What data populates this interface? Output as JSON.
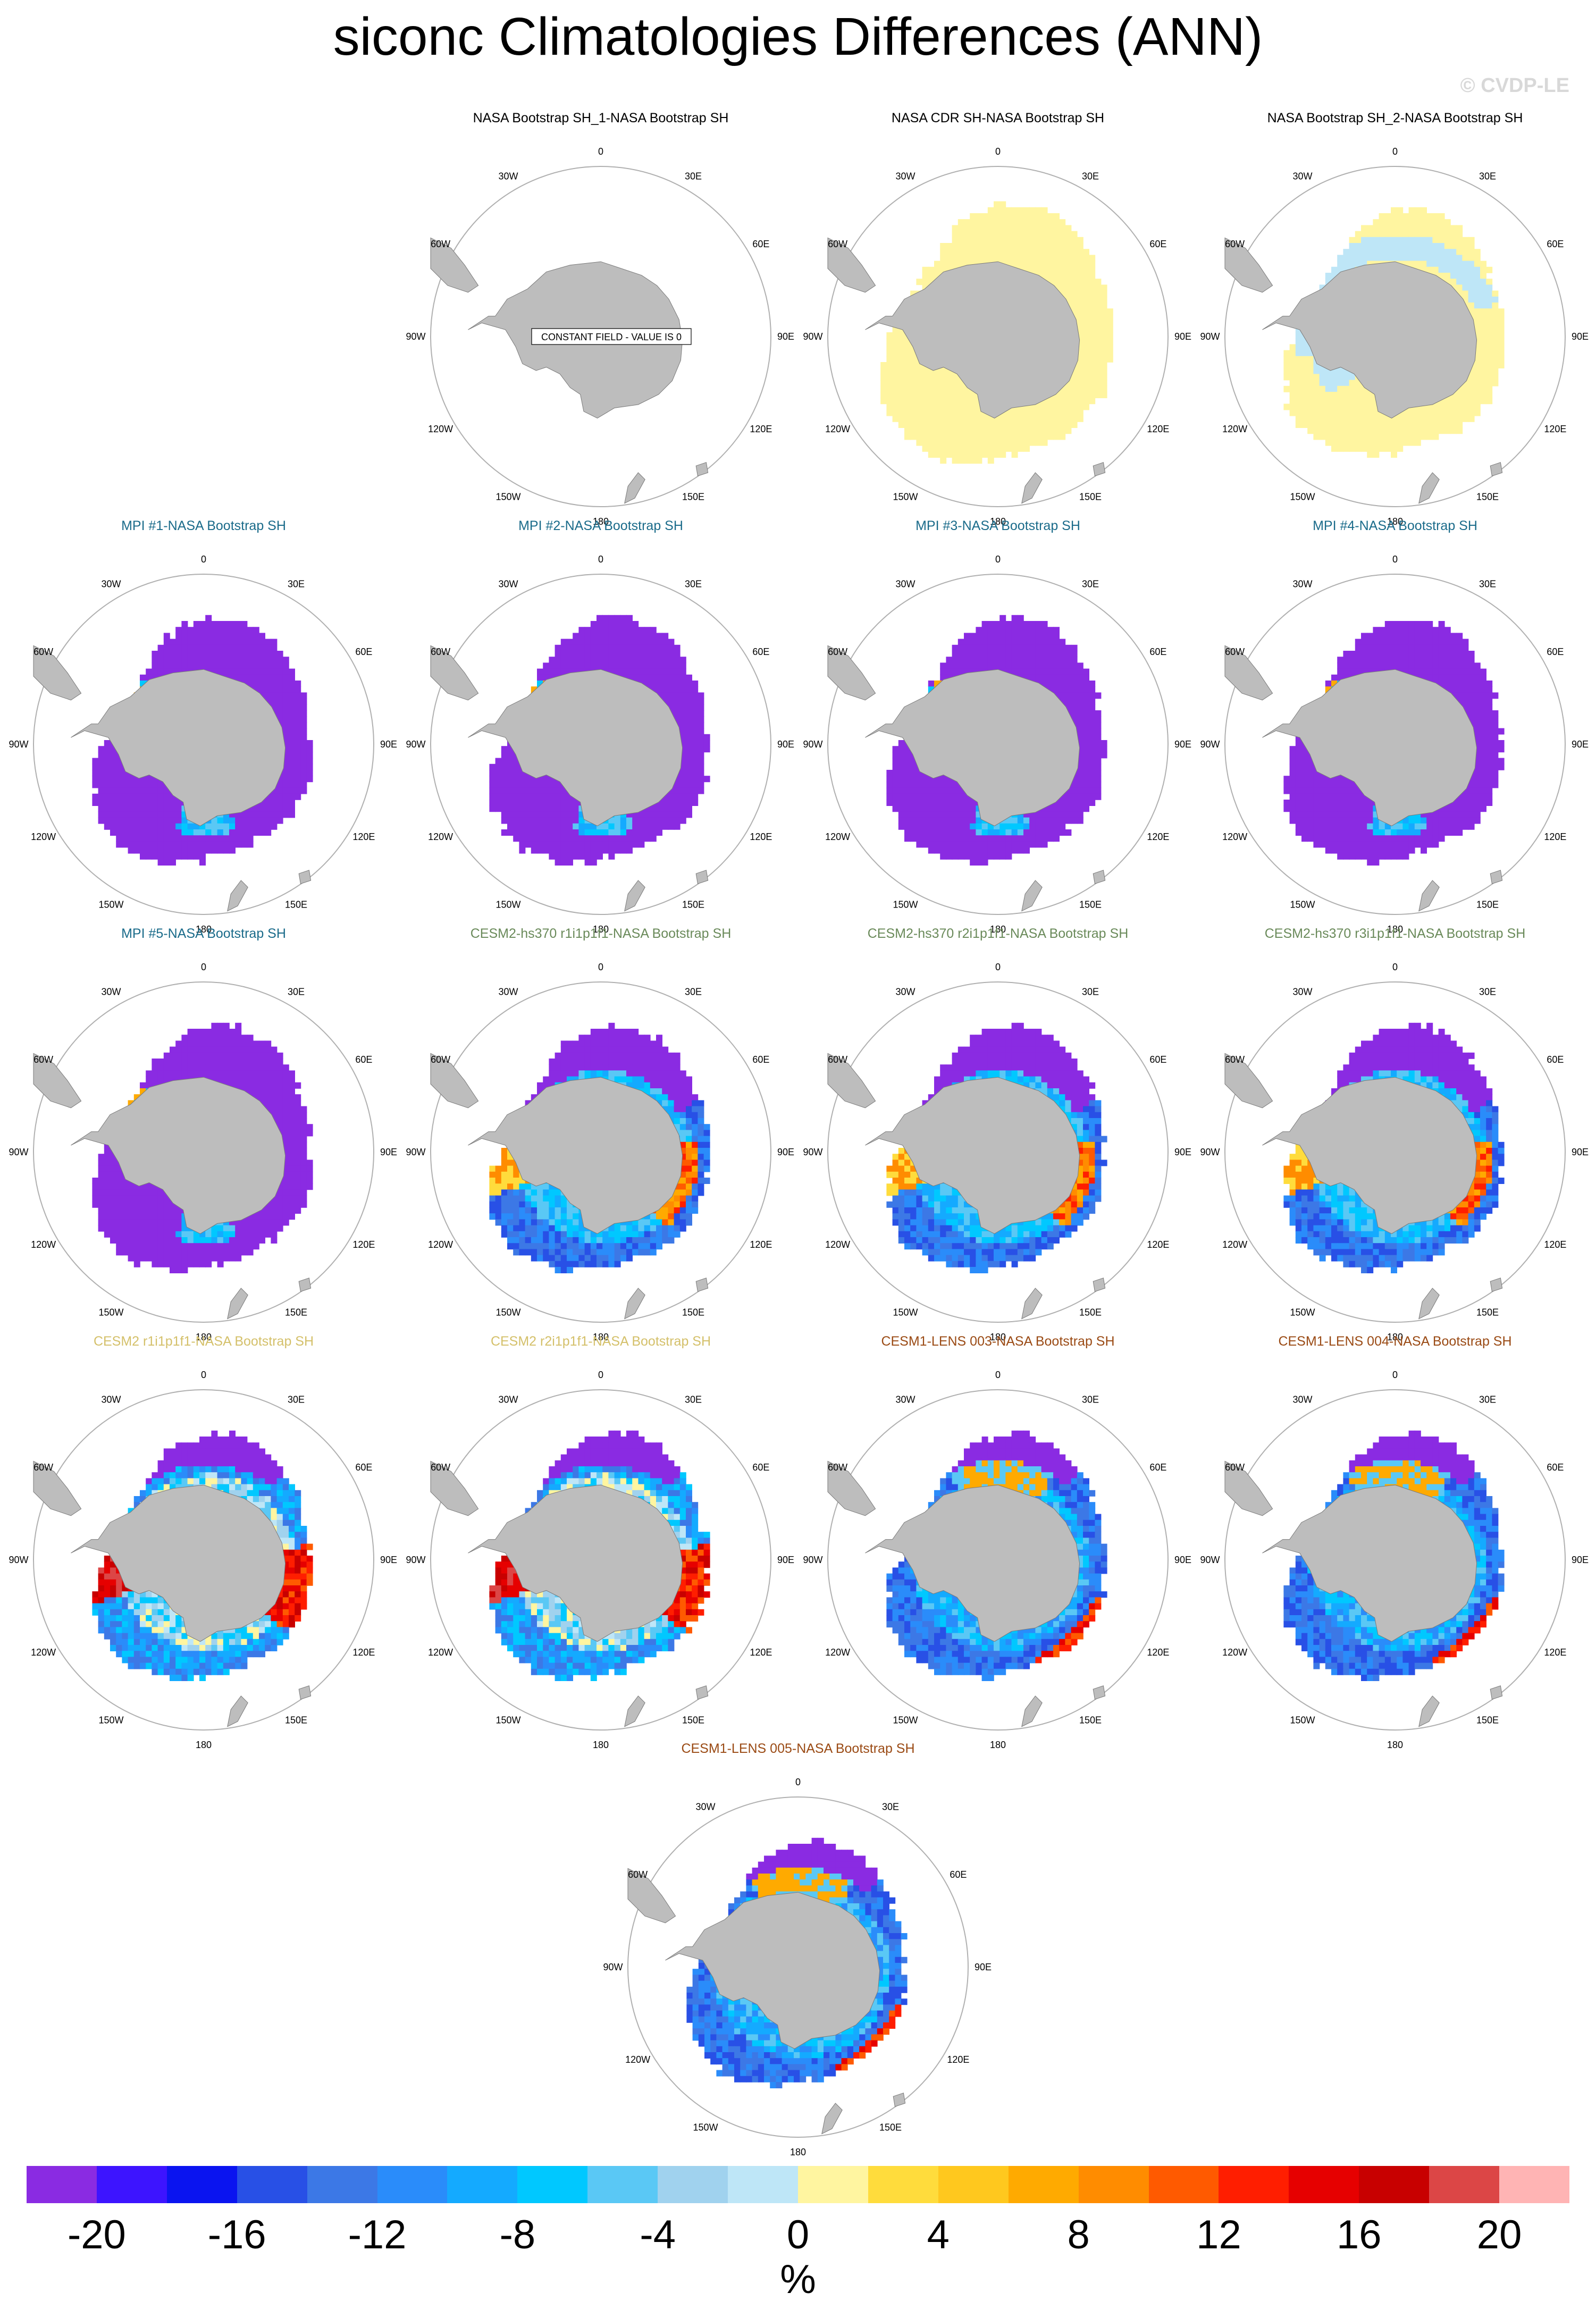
{
  "title": "siconc Climatologies Differences (ANN)",
  "watermark": "© CVDP-LE",
  "lon_labels": [
    "0",
    "30E",
    "60E",
    "90E",
    "120E",
    "150E",
    "180",
    "150W",
    "120W",
    "90W",
    "60W",
    "30W"
  ],
  "colors": {
    "obs_title": "#000000",
    "mpi_title": "#1a6b8a",
    "cesm2hs_title": "#6a8a5a",
    "cesm2_title": "#d4c06a",
    "lens_title": "#9a4a14",
    "land": "#bdbdbd",
    "ring": "#b0b0b0"
  },
  "panels": [
    {
      "title": "NASA Bootstrap SH_1-NASA Bootstrap SH",
      "color_key": "obs_title",
      "pattern": "constant",
      "label": "CONSTANT FIELD - VALUE IS 0"
    },
    {
      "title": "NASA CDR SH-NASA Bootstrap SH",
      "color_key": "obs_title",
      "pattern": "cdr"
    },
    {
      "title": "NASA Bootstrap SH_2-NASA Bootstrap SH",
      "color_key": "obs_title",
      "pattern": "bs2"
    },
    {
      "title": "MPI #1-NASA Bootstrap SH",
      "color_key": "mpi_title",
      "pattern": "mpi"
    },
    {
      "title": "MPI #2-NASA Bootstrap SH",
      "color_key": "mpi_title",
      "pattern": "mpi"
    },
    {
      "title": "MPI #3-NASA Bootstrap SH",
      "color_key": "mpi_title",
      "pattern": "mpi"
    },
    {
      "title": "MPI #4-NASA Bootstrap SH",
      "color_key": "mpi_title",
      "pattern": "mpi"
    },
    {
      "title": "MPI #5-NASA Bootstrap SH",
      "color_key": "mpi_title",
      "pattern": "mpi"
    },
    {
      "title": "CESM2-hs370 r1i1p1f1-NASA Bootstrap SH",
      "color_key": "cesm2hs_title",
      "pattern": "cesm_hs"
    },
    {
      "title": "CESM2-hs370 r2i1p1f1-NASA Bootstrap SH",
      "color_key": "cesm2hs_title",
      "pattern": "cesm_hs"
    },
    {
      "title": "CESM2-hs370 r3i1p1f1-NASA Bootstrap SH",
      "color_key": "cesm2hs_title",
      "pattern": "cesm_hs"
    },
    {
      "title": "CESM2 r1i1p1f1-NASA Bootstrap SH",
      "color_key": "cesm2_title",
      "pattern": "cesm2"
    },
    {
      "title": "CESM2 r2i1p1f1-NASA Bootstrap SH",
      "color_key": "cesm2_title",
      "pattern": "cesm2"
    },
    {
      "title": "CESM1-LENS 003-NASA Bootstrap SH",
      "color_key": "lens_title",
      "pattern": "lens"
    },
    {
      "title": "CESM1-LENS 004-NASA Bootstrap SH",
      "color_key": "lens_title",
      "pattern": "lens"
    },
    {
      "title": "CESM1-LENS 005-NASA Bootstrap SH",
      "color_key": "lens_title",
      "pattern": "lens"
    }
  ],
  "colorbar": {
    "colors": [
      "#8a2be2",
      "#3d14ff",
      "#0a14f0",
      "#2850e6",
      "#3c78e6",
      "#2a8cfa",
      "#14aaff",
      "#00c8ff",
      "#5ac8f5",
      "#a0d2ee",
      "#bee6f7",
      "#fff5a0",
      "#ffdc3c",
      "#ffc81e",
      "#ffaa00",
      "#ff8c00",
      "#ff5a00",
      "#ff1e00",
      "#e60000",
      "#c80000",
      "#dc4646",
      "#ffb4b4"
    ],
    "tick_labels": [
      "-20",
      "-16",
      "-12",
      "-8",
      "-4",
      "0",
      "4",
      "8",
      "12",
      "16",
      "20"
    ],
    "units": "%"
  }
}
